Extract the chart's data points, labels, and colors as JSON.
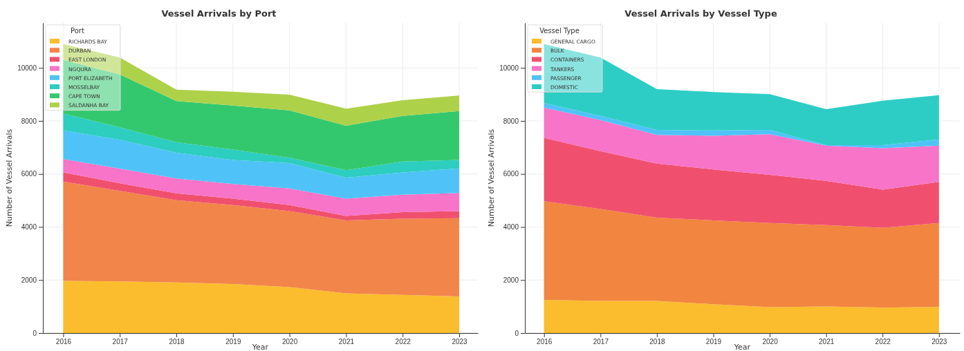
{
  "chart_data": [
    {
      "type": "area",
      "stacked": true,
      "title": "Vessel Arrivals by Port",
      "xlabel": "Year",
      "ylabel": "Number of Vessel Arrivals",
      "legend_title": "Port",
      "legend": "top left",
      "grid": true,
      "x": [
        2016,
        2017,
        2018,
        2019,
        2020,
        2021,
        2022,
        2023
      ],
      "xlim": [
        2015.64,
        2023.33
      ],
      "xticks": [
        2016,
        2017,
        2018,
        2019,
        2020,
        2021,
        2022,
        2023
      ],
      "ylim": [
        0,
        11700
      ],
      "yticks": [
        0,
        2000,
        4000,
        6000,
        8000,
        10000
      ],
      "series": [
        {
          "name": "RICHARDS BAY",
          "color": "#fbbd2e",
          "values": [
            1970,
            1950,
            1910,
            1850,
            1730,
            1500,
            1440,
            1380
          ]
        },
        {
          "name": "DURBAN",
          "color": "#f2854a",
          "values": [
            3740,
            3410,
            3100,
            2980,
            2870,
            2750,
            2870,
            2950
          ]
        },
        {
          "name": "EAST LONDON",
          "color": "#f0506e",
          "values": [
            350,
            290,
            260,
            240,
            230,
            170,
            250,
            270
          ]
        },
        {
          "name": "NGQURA",
          "color": "#f774c8",
          "values": [
            500,
            550,
            560,
            550,
            620,
            650,
            660,
            680
          ]
        },
        {
          "name": "PORT ELIZABETH",
          "color": "#4fc3f7",
          "values": [
            1080,
            1090,
            970,
            910,
            960,
            790,
            840,
            930
          ]
        },
        {
          "name": "MOSSELBAY",
          "color": "#2dcdc0",
          "values": [
            640,
            470,
            400,
            390,
            200,
            280,
            410,
            320
          ]
        },
        {
          "name": "CAPE TOWN",
          "color": "#34c86e",
          "values": [
            2020,
            1990,
            1550,
            1660,
            1790,
            1680,
            1720,
            1840
          ]
        },
        {
          "name": "SALDANHA BAY",
          "color": "#aed14a",
          "values": [
            600,
            640,
            430,
            520,
            590,
            640,
            590,
            590
          ]
        }
      ]
    },
    {
      "type": "area",
      "stacked": true,
      "title": "Vessel Arrivals by Vessel Type",
      "xlabel": "Year",
      "ylabel": "Number of Vessel Arrivals",
      "legend_title": "Vessel Type",
      "legend": "top left",
      "grid": true,
      "x": [
        2016,
        2017,
        2018,
        2019,
        2020,
        2021,
        2022,
        2023
      ],
      "xlim": [
        2015.66,
        2023.37
      ],
      "xticks": [
        2016,
        2017,
        2018,
        2019,
        2020,
        2021,
        2022,
        2023
      ],
      "ylim": [
        0,
        11700
      ],
      "yticks": [
        0,
        2000,
        4000,
        6000,
        8000,
        10000
      ],
      "series": [
        {
          "name": "GENERAL CARGO",
          "color": "#fbbd2e",
          "values": [
            1250,
            1210,
            1210,
            1090,
            980,
            1000,
            960,
            990
          ]
        },
        {
          "name": "BULK",
          "color": "#f2853f",
          "values": [
            3720,
            3470,
            3140,
            3160,
            3170,
            3070,
            3010,
            3160
          ]
        },
        {
          "name": "CONTAINERS",
          "color": "#f0506e",
          "values": [
            2390,
            2180,
            2040,
            1920,
            1820,
            1670,
            1440,
            1550
          ]
        },
        {
          "name": "TANKERS",
          "color": "#f774c8",
          "values": [
            1140,
            1170,
            1080,
            1270,
            1530,
            1330,
            1560,
            1370
          ]
        },
        {
          "name": "PASSENGER",
          "color": "#4fc3f7",
          "values": [
            180,
            160,
            190,
            200,
            160,
            20,
            120,
            230
          ]
        },
        {
          "name": "DOMESTIC",
          "color": "#2dcdc5",
          "values": [
            2220,
            2200,
            1540,
            1450,
            1350,
            1350,
            1670,
            1670
          ]
        }
      ]
    }
  ]
}
